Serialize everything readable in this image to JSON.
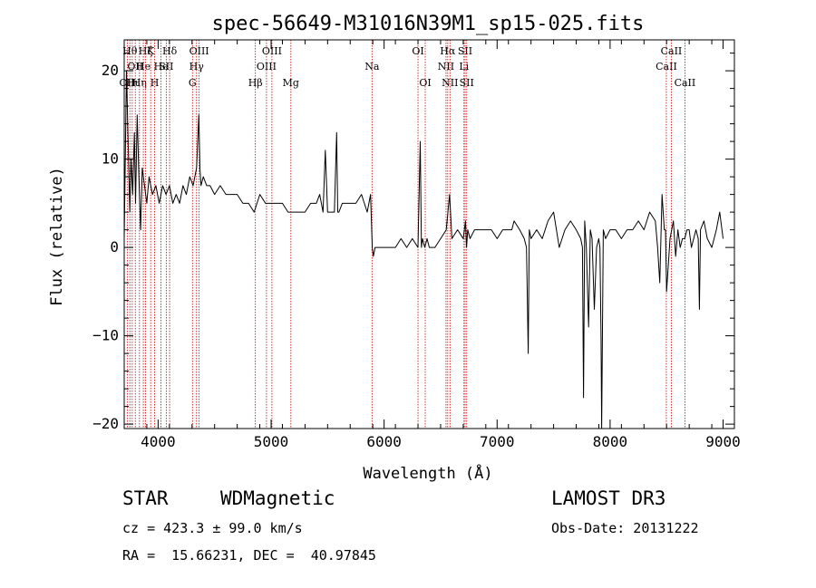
{
  "chart_data": {
    "type": "line",
    "title": "spec-56649-M31016N39M1_sp15-025.fits",
    "xlabel": "Wavelength (Å)",
    "ylabel": "Flux (relative)",
    "xlim": [
      3700,
      9100
    ],
    "ylim": [
      -20.5,
      23.5
    ],
    "xticks": [
      4000,
      5000,
      6000,
      7000,
      8000,
      9000
    ],
    "yticks": [
      -20,
      -10,
      0,
      10,
      20
    ],
    "ytick_labels": [
      "−20",
      "−10",
      "0",
      "10",
      "20"
    ],
    "grid": false,
    "series": [
      {
        "x": [
          3700,
          3720,
          3740,
          3750,
          3760,
          3775,
          3790,
          3800,
          3815,
          3830,
          3845,
          3860,
          3880,
          3900,
          3920,
          3950,
          3980,
          4010,
          4040,
          4070,
          4100,
          4130,
          4160,
          4190,
          4220,
          4250,
          4280,
          4310,
          4340,
          4360,
          4370,
          4380,
          4400,
          4430,
          4460,
          4500,
          4550,
          4600,
          4650,
          4700,
          4750,
          4800,
          4850,
          4900,
          4950,
          5000,
          5050,
          5100,
          5150,
          5200,
          5250,
          5300,
          5350,
          5400,
          5430,
          5460,
          5480,
          5500,
          5530,
          5560,
          5580,
          5590,
          5600,
          5630,
          5660,
          5700,
          5750,
          5800,
          5850,
          5880,
          5895,
          5905,
          5920,
          5950,
          6000,
          6050,
          6100,
          6150,
          6200,
          6250,
          6300,
          6320,
          6330,
          6340,
          6360,
          6380,
          6400,
          6450,
          6500,
          6550,
          6580,
          6600,
          6650,
          6700,
          6720,
          6730,
          6740,
          6760,
          6800,
          6850,
          6900,
          6950,
          7000,
          7050,
          7100,
          7130,
          7150,
          7200,
          7240,
          7260,
          7275,
          7285,
          7300,
          7350,
          7400,
          7450,
          7500,
          7550,
          7600,
          7650,
          7700,
          7740,
          7755,
          7765,
          7775,
          7790,
          7810,
          7825,
          7840,
          7860,
          7880,
          7900,
          7910,
          7920,
          7925,
          7940,
          7960,
          8000,
          8050,
          8100,
          8150,
          8200,
          8250,
          8300,
          8350,
          8400,
          8420,
          8440,
          8460,
          8480,
          8490,
          8500,
          8530,
          8560,
          8580,
          8600,
          8620,
          8640,
          8660,
          8680,
          8700,
          8720,
          8740,
          8760,
          8780,
          8790,
          8800,
          8830,
          8860,
          8900,
          8940,
          8970,
          9000
        ],
        "y": [
          1,
          20,
          9,
          4,
          10,
          6,
          13,
          5,
          15,
          8,
          2,
          9,
          7,
          5,
          8,
          6,
          7,
          5,
          7,
          6,
          7,
          5,
          6,
          5,
          7,
          6,
          8,
          7,
          9,
          15,
          9,
          7,
          8,
          7,
          7,
          6,
          7,
          6,
          6,
          6,
          5,
          5,
          4,
          6,
          5,
          5,
          5,
          5,
          4,
          4,
          4,
          4,
          5,
          5,
          6,
          4,
          11,
          4,
          4,
          4,
          13,
          4,
          4,
          5,
          5,
          5,
          5,
          6,
          4,
          6,
          0,
          -1,
          0,
          0,
          0,
          0,
          0,
          1,
          0,
          1,
          0,
          12,
          0,
          1,
          0,
          1,
          0,
          0,
          1,
          2,
          6,
          1,
          2,
          1,
          3,
          0,
          2,
          1,
          2,
          2,
          2,
          2,
          1,
          2,
          2,
          2,
          3,
          2,
          1,
          0,
          -12,
          2,
          1,
          2,
          1,
          3,
          4,
          0,
          2,
          3,
          2,
          1,
          0,
          -17,
          3,
          0,
          -9,
          2,
          1,
          -7,
          0,
          1,
          0,
          -10,
          -21,
          2,
          1,
          2,
          2,
          1,
          2,
          2,
          3,
          2,
          4,
          3,
          0,
          -4,
          6,
          2,
          2,
          -5,
          1,
          3,
          -1,
          2,
          0,
          1,
          1,
          2,
          2,
          0,
          1,
          2,
          1,
          -7,
          2,
          3,
          1,
          0,
          2,
          4,
          1
        ]
      }
    ],
    "line_markers": [
      {
        "x": 3727,
        "label": "OII",
        "row": 2
      },
      {
        "x": 3750,
        "label": "Hθ",
        "row": 0
      },
      {
        "x": 3771,
        "label": "Hι",
        "row": 2
      },
      {
        "x": 3798,
        "label": "OII",
        "row": 1
      },
      {
        "x": 3835,
        "label": "Hη",
        "row": 2
      },
      {
        "x": 3869,
        "label": "He",
        "row": 1
      },
      {
        "x": 3889,
        "label": "Hζ",
        "row": 0
      },
      {
        "x": 3934,
        "label": "K",
        "row": 0
      },
      {
        "x": 3969,
        "label": "H",
        "row": 2
      },
      {
        "x": 4026,
        "label": "He",
        "row": 1
      },
      {
        "x": 4072,
        "label": "SII",
        "row": 1
      },
      {
        "x": 4102,
        "label": "Hδ",
        "row": 0
      },
      {
        "x": 4304,
        "label": "G",
        "row": 2
      },
      {
        "x": 4340,
        "label": "Hγ",
        "row": 1
      },
      {
        "x": 4363,
        "label": "OIII",
        "row": 0
      },
      {
        "x": 4861,
        "label": "Hβ",
        "row": 2
      },
      {
        "x": 4959,
        "label": "OIII",
        "row": 1
      },
      {
        "x": 5007,
        "label": "OIII",
        "row": 0
      },
      {
        "x": 5175,
        "label": "Mg",
        "row": 2
      },
      {
        "x": 5893,
        "label": "Na",
        "row": 1
      },
      {
        "x": 6300,
        "label": "OI",
        "row": 0
      },
      {
        "x": 6364,
        "label": "OI",
        "row": 2
      },
      {
        "x": 6548,
        "label": "NII",
        "row": 1
      },
      {
        "x": 6563,
        "label": "Hα",
        "row": 0
      },
      {
        "x": 6583,
        "label": "NII",
        "row": 2
      },
      {
        "x": 6707,
        "label": "Li",
        "row": 1
      },
      {
        "x": 6717,
        "label": "SII",
        "row": 0
      },
      {
        "x": 6731,
        "label": "SII",
        "row": 2
      },
      {
        "x": 8498,
        "label": "CaII",
        "row": 1
      },
      {
        "x": 8542,
        "label": "CaII",
        "row": 0
      },
      {
        "x": 8662,
        "label": "CaII",
        "row": 2
      }
    ]
  },
  "footer": {
    "class_label": "STAR",
    "subclass": "WDMagnetic",
    "survey": "LAMOST DR3",
    "redshift": "cz = 423.3 ± 99.0 km/s",
    "obs_date": "Obs-Date: 20131222",
    "coords": "RA =  15.66231, DEC =  40.97845"
  },
  "colors": {
    "spectrum": "#000000",
    "marker_line": "#cc0000",
    "axes": "#000000"
  }
}
